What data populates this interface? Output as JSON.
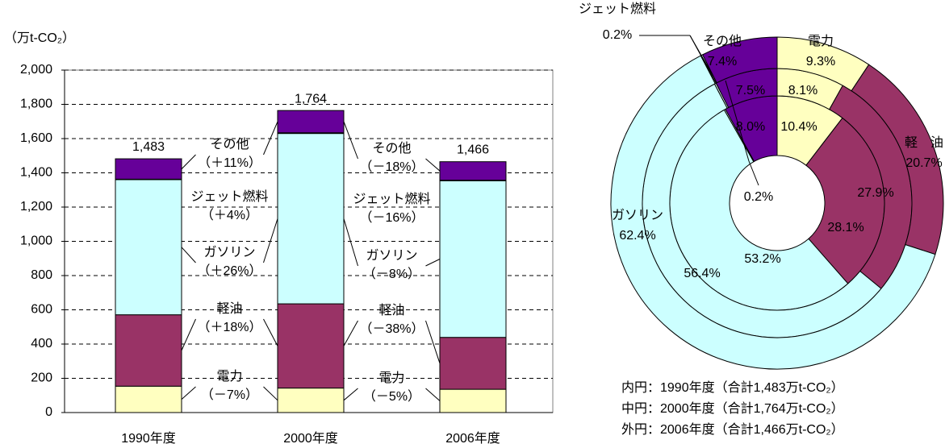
{
  "chart_data": [
    {
      "type": "stacked-bar",
      "axis_label": "（万t-CO₂）",
      "categories": [
        "1990年度",
        "2000年度",
        "2006年度"
      ],
      "series": [
        {
          "name": "電力",
          "color": "#ffffc0",
          "values": [
            154,
            143,
            136
          ]
        },
        {
          "name": "軽油",
          "color": "#993366",
          "values": [
            417,
            492,
            303
          ]
        },
        {
          "name": "ガソリン",
          "color": "#ccffff",
          "values": [
            789,
            995,
            915
          ]
        },
        {
          "name": "ジェット燃料",
          "color": "#e6ffff",
          "values": [
            3,
            4,
            3
          ]
        },
        {
          "name": "その他",
          "color": "#660099",
          "values": [
            119,
            130,
            108
          ]
        }
      ],
      "totals": {
        "values": [
          1483,
          1764,
          1466
        ],
        "value_labels": [
          "1,483",
          "1,764",
          "1,466"
        ]
      },
      "changes": [
        [
          "（－7%）",
          "（＋18%）",
          "（＋26%）",
          "（＋4%）",
          "（＋11%）"
        ],
        [
          "（－5%）",
          "（－38%）",
          "（－8%）",
          "（－16%）",
          "（－18%）"
        ]
      ],
      "ylim": [
        0,
        2000
      ],
      "yticks": [
        0,
        200,
        400,
        600,
        800,
        {
          "value": 1000,
          "label": "1,000"
        },
        {
          "value": 1200,
          "label": "1,200"
        },
        {
          "value": 1400,
          "label": "1,400"
        },
        {
          "value": 1600,
          "label": "1,600"
        },
        {
          "value": 1800,
          "label": "1,800"
        },
        {
          "value": 2000,
          "label": "2,000"
        }
      ],
      "grid": true
    },
    {
      "type": "donut",
      "categories": [
        "電力",
        "軽　油",
        "ガソリン",
        "ジェット燃料",
        "その他"
      ],
      "colors": [
        "#ffffc0",
        "#993366",
        "#ccffff",
        "#e6ffff",
        "#660099"
      ],
      "rings": [
        {
          "label": "内円：1990年度（合計1,483万t-CO₂）",
          "values": [
            10.4,
            28.1,
            53.2,
            0.2,
            8.0
          ],
          "value_labels": [
            "10.4%",
            "28.1%",
            "53.2%",
            "0.2%",
            "8.0%"
          ]
        },
        {
          "label": "中円：2000年度（合計1,764万t-CO₂）",
          "values": [
            8.1,
            27.9,
            56.4,
            0.2,
            7.5
          ],
          "value_labels": [
            "8.1%",
            "27.9%",
            "56.4%",
            null,
            "7.5%"
          ]
        },
        {
          "label": "外円：2006年度（合計1,466万t-CO₂）",
          "values": [
            9.3,
            20.7,
            62.4,
            0.2,
            7.4
          ],
          "value_labels": [
            "9.3%",
            "20.7%",
            "62.4%",
            "0.2%",
            "7.4%"
          ]
        }
      ]
    }
  ]
}
